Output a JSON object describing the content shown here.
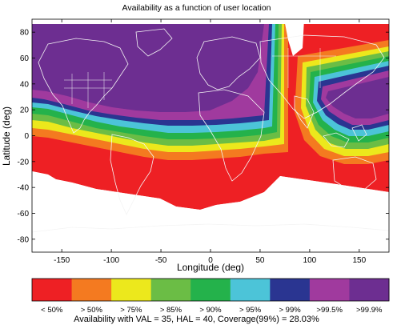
{
  "title": "Availability as a function of user location",
  "xlabel": "Longitude (deg)",
  "ylabel": "Latitude (deg)",
  "x_ticks": [
    "-150",
    "-100",
    "-50",
    "0",
    "50",
    "100",
    "150"
  ],
  "y_ticks": [
    "80",
    "60",
    "40",
    "20",
    "0",
    "-20",
    "-40",
    "-60",
    "-80"
  ],
  "legend": {
    "labels": [
      "< 50%",
      "> 50%",
      "> 75%",
      "> 85%",
      "> 90%",
      "> 95%",
      "> 99%",
      ">99.5%",
      ">99.9%"
    ],
    "colors": [
      "#ee2024",
      "#f47a20",
      "#ece81c",
      "#6bbd45",
      "#24b24b",
      "#4cc4d8",
      "#2a3591",
      "#a03a9e",
      "#6d2e91"
    ]
  },
  "caption": "Availability with VAL = 35,  HAL = 40, Coverage(99%) = 28.03%",
  "chart_data": {
    "type": "heatmap",
    "title": "Availability as a function of user location",
    "xlabel": "Longitude (deg)",
    "ylabel": "Latitude (deg)",
    "xlim": [
      -180,
      180
    ],
    "ylim": [
      -90,
      90
    ],
    "levels": [
      "< 50%",
      "> 50%",
      "> 75%",
      "> 85%",
      "> 90%",
      "> 95%",
      "> 99%",
      ">99.5%",
      ">99.9%"
    ],
    "coverage_99_percent": 28.03,
    "VAL": 35,
    "HAL": 40
  }
}
